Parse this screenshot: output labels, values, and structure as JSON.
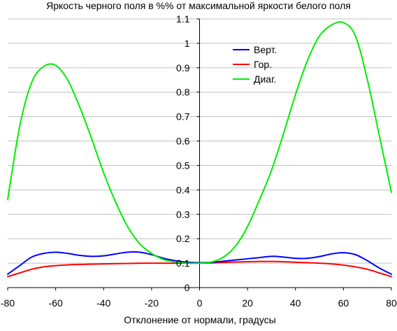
{
  "chart_data": {
    "type": "line",
    "title": "Яркость черного поля в %% от максимальной яркости белого поля",
    "xlabel": "Отклонение от нормали, градусы",
    "ylabel": "",
    "xlim": [
      -80,
      80
    ],
    "ylim": [
      0,
      1.1
    ],
    "x_ticks": [
      "-80",
      "-60",
      "-40",
      "-20",
      "0",
      "20",
      "40",
      "60",
      "80"
    ],
    "y_ticks": [
      "0",
      "0.1",
      "0.2",
      "0.3",
      "0.4",
      "0.5",
      "0.6",
      "0.7",
      "0.8",
      "0.9",
      "1",
      "1.1"
    ],
    "grid": "horizontal",
    "legend_position": "top-right",
    "x": [
      -80,
      -75,
      -70,
      -65,
      -60,
      -55,
      -50,
      -45,
      -40,
      -35,
      -30,
      -25,
      -20,
      -15,
      -10,
      -5,
      0,
      5,
      10,
      15,
      20,
      25,
      30,
      35,
      40,
      45,
      50,
      55,
      60,
      65,
      70,
      75,
      80
    ],
    "series": [
      {
        "name": "Верт.",
        "color": "#0000ff",
        "values": [
          0.055,
          0.09,
          0.125,
          0.14,
          0.145,
          0.14,
          0.132,
          0.128,
          0.13,
          0.138,
          0.145,
          0.145,
          0.135,
          0.12,
          0.11,
          0.104,
          0.102,
          0.104,
          0.108,
          0.113,
          0.118,
          0.123,
          0.128,
          0.125,
          0.12,
          0.12,
          0.127,
          0.138,
          0.143,
          0.135,
          0.11,
          0.08,
          0.055
        ]
      },
      {
        "name": "Гор.",
        "color": "#ff0000",
        "values": [
          0.045,
          0.06,
          0.075,
          0.085,
          0.09,
          0.093,
          0.095,
          0.096,
          0.097,
          0.098,
          0.099,
          0.1,
          0.1,
          0.1,
          0.1,
          0.1,
          0.1,
          0.101,
          0.103,
          0.105,
          0.106,
          0.107,
          0.107,
          0.106,
          0.104,
          0.102,
          0.1,
          0.097,
          0.092,
          0.085,
          0.075,
          0.06,
          0.045
        ]
      },
      {
        "name": "Диаг.",
        "color": "#00ee00",
        "values": [
          0.36,
          0.66,
          0.84,
          0.905,
          0.91,
          0.85,
          0.74,
          0.61,
          0.47,
          0.35,
          0.25,
          0.18,
          0.14,
          0.115,
          0.105,
          0.1,
          0.1,
          0.105,
          0.125,
          0.17,
          0.25,
          0.36,
          0.48,
          0.63,
          0.79,
          0.93,
          1.03,
          1.075,
          1.085,
          1.03,
          0.85,
          0.62,
          0.39
        ]
      }
    ]
  }
}
